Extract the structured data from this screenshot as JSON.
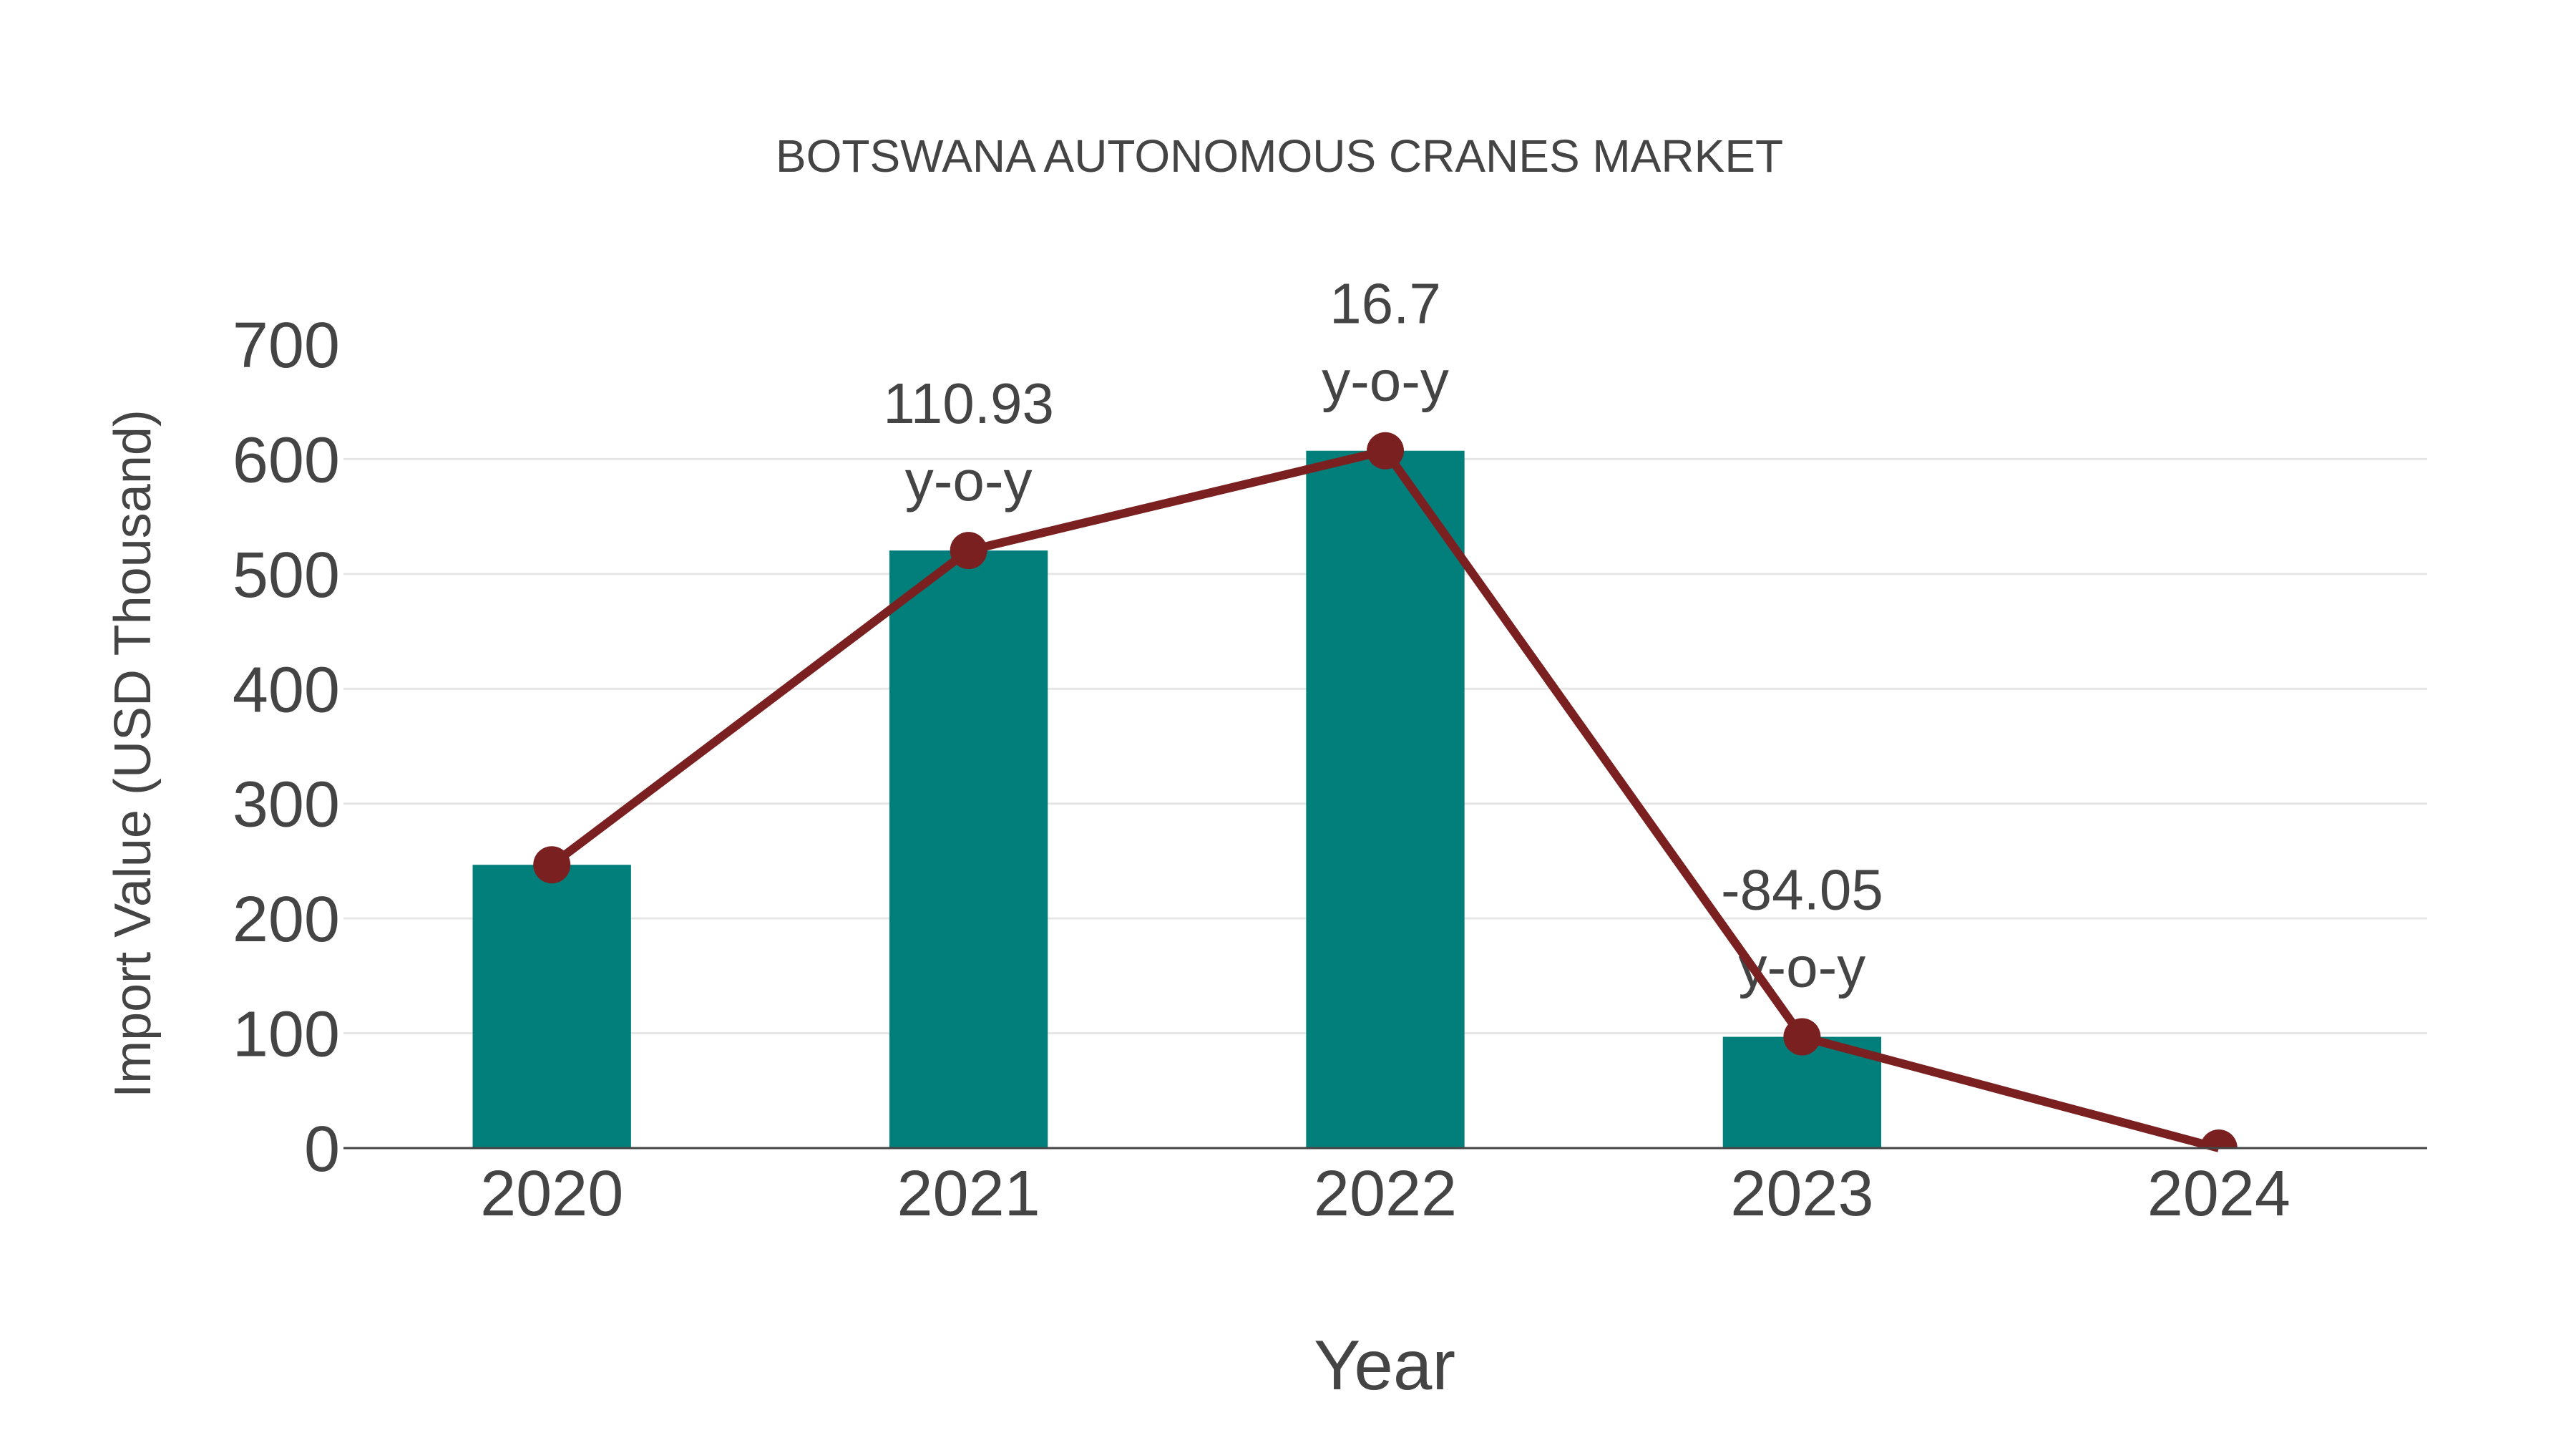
{
  "chart_data": {
    "type": "bar+line",
    "title": "BOTSWANA AUTONOMOUS CRANES MARKET",
    "xlabel": "Year",
    "ylabel": "Import Value (USD Thousand)",
    "categories": [
      "2020",
      "2021",
      "2022",
      "2023",
      "2024"
    ],
    "series": [
      {
        "name": "Import Value (bars)",
        "type": "bar",
        "color": "#027f7b",
        "values": [
          246.7,
          520.4,
          607.3,
          96.9,
          0
        ]
      },
      {
        "name": "Import Value (line)",
        "type": "line",
        "color": "#7b2020",
        "values": [
          246.7,
          520.4,
          607.3,
          96.9,
          0
        ]
      }
    ],
    "annotations": [
      {
        "category": "2021",
        "line1": "110.93",
        "line2": "y-o-y"
      },
      {
        "category": "2022",
        "line1": "16.7",
        "line2": "y-o-y"
      },
      {
        "category": "2023",
        "line1": "-84.05",
        "line2": "y-o-y"
      }
    ],
    "ylim": [
      0,
      700
    ],
    "yticks": [
      "0",
      "100",
      "200",
      "300",
      "400",
      "500",
      "600",
      "700"
    ],
    "grid": true,
    "legend": "none"
  },
  "colors": {
    "bar": "#027f7b",
    "line": "#7b2020",
    "text": "#444444",
    "grid": "#e6e6e6",
    "axis": "#444444"
  }
}
